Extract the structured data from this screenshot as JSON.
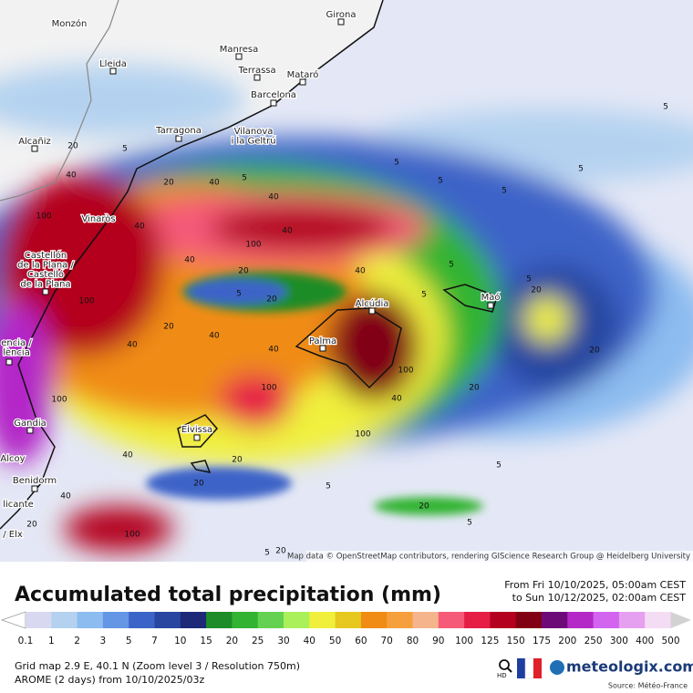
{
  "map": {
    "cities": [
      [
        "Monzón"
      ],
      [
        "Girona"
      ],
      [
        "Manresa"
      ],
      [
        "Lleida"
      ],
      [
        "Terrassa"
      ],
      [
        "Mataró"
      ],
      [
        "Barcelona"
      ],
      [
        "Tarragona"
      ],
      [
        "Vilanova",
        "i la Geltrú"
      ],
      [
        "Alcañiz"
      ],
      [
        "Vinaròs"
      ],
      [
        "Castellón",
        "de la Plana /",
        "Castelló",
        "de la Plana"
      ],
      [
        "encia /",
        "lència"
      ],
      [
        "Gandia"
      ],
      [
        "Alcoy"
      ],
      [
        "Benidorm"
      ],
      [
        "licante"
      ],
      [
        "/ Elx"
      ],
      [
        "Eivissa"
      ],
      [
        "Palma"
      ],
      [
        "Alcúdia"
      ],
      [
        "Maó"
      ]
    ],
    "contour_labels": [
      20,
      5,
      40,
      20,
      40,
      5,
      40,
      100,
      40,
      100,
      40,
      20,
      40,
      40,
      5,
      20,
      100,
      20,
      40,
      40,
      40,
      100,
      100,
      100,
      100,
      20,
      40,
      20,
      40,
      100,
      20,
      5,
      5,
      5,
      5,
      5,
      5,
      20,
      20,
      20,
      5,
      20,
      5,
      5,
      5,
      40,
      5,
      5,
      20
    ],
    "attribution": "Map data © OpenStreetMap contributors, rendering GIScience Research Group @ Heidelberg University"
  },
  "title": "Accumulated total precipitation (mm)",
  "period": [
    "From Fri 10/10/2025, 05:00am CEST",
    "to Sun 10/12/2025, 02:00am CEST"
  ],
  "legend": {
    "ticks": [
      0.1,
      1,
      2,
      3,
      5,
      7,
      10,
      15,
      20,
      25,
      30,
      40,
      50,
      60,
      70,
      80,
      90,
      100,
      125,
      150,
      175,
      200,
      250,
      300,
      400,
      500
    ],
    "colors": [
      "#d8d8f0",
      "#b4d2f0",
      "#8cbcf0",
      "#6496e6",
      "#3c64c8",
      "#2846a0",
      "#1e2878",
      "#1e8c28",
      "#32b432",
      "#64d250",
      "#aaf05a",
      "#f0f03c",
      "#e6c81e",
      "#f08c14",
      "#f5a03c",
      "#f5b48c",
      "#f55a78",
      "#e61e46",
      "#b4001e",
      "#820014",
      "#6e0a78",
      "#b428c8",
      "#d264f0",
      "#e6a0f0",
      "#f5dcf5",
      "#d2d2d2"
    ]
  },
  "footer": {
    "grid": "Grid map 2.9 E, 40.1 N (Zoom level 3 / Resolution 750m)",
    "model": "AROME (2 days) from 10/10/2025/03z",
    "hd": "HD",
    "logo": "meteologix.com",
    "source": "Source: Météo-France"
  }
}
